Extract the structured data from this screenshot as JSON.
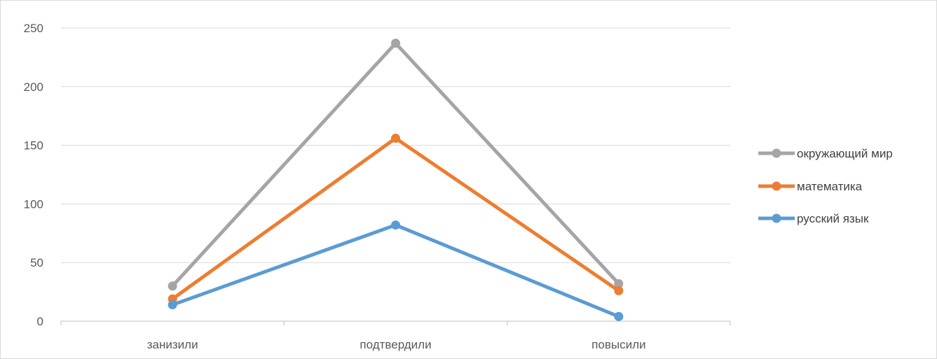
{
  "chart_data": {
    "type": "line",
    "categories": [
      "занизили",
      "подтвердили",
      "повысили"
    ],
    "series": [
      {
        "name": "русский язык",
        "values": [
          14,
          82,
          4
        ],
        "color": "#5B9BD5"
      },
      {
        "name": "математика",
        "values": [
          19,
          156,
          26
        ],
        "color": "#ED7D31"
      },
      {
        "name": "окружающий мир",
        "values": [
          30,
          237,
          32
        ],
        "color": "#A5A5A5"
      }
    ],
    "legend_order": [
      "окружающий мир",
      "математика",
      "русский язык"
    ],
    "legend_position": "right",
    "ylim": [
      0,
      250
    ],
    "yticks": [
      "0",
      "50",
      "100",
      "150",
      "200",
      "250"
    ],
    "grid": true,
    "colors": {
      "grid": "#D9D9D9",
      "axis": "#BFBFBF",
      "border": "#D9D9D9"
    }
  }
}
